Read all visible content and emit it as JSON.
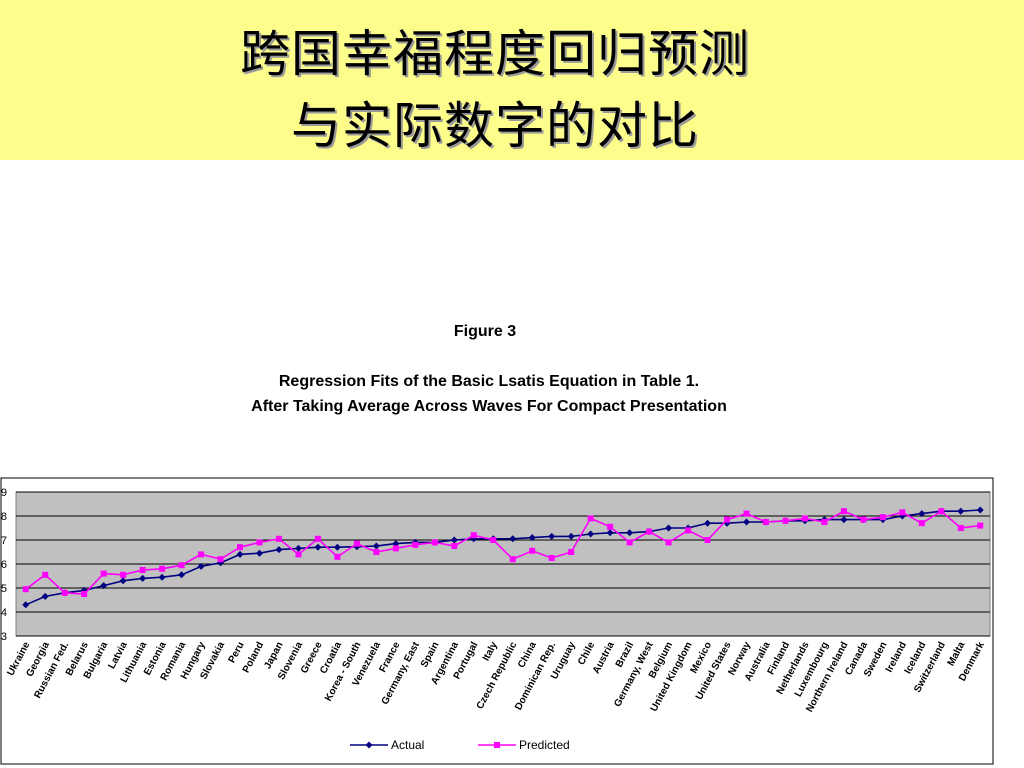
{
  "slide": {
    "title_line1": "跨国幸福程度回归预测",
    "title_line2": "与实际数字的对比"
  },
  "colors": {
    "banner": "#fdfd8c",
    "plot_bg": "#c0c0c0",
    "actual": "#000080",
    "predicted": "#ff00ff"
  },
  "chart_data": {
    "type": "line",
    "figure_label": "Figure 3",
    "title": "Regression Fits of the Basic Lsatis Equation in Table 1.",
    "subtitle": "After Taking Average Across Waves For Compact Presentation",
    "ylim": [
      3,
      9
    ],
    "yticks": [
      "3",
      "4",
      "5",
      "6",
      "7",
      "8",
      "9"
    ],
    "grid": true,
    "legend_position": "bottom",
    "categories": [
      "Ukraine",
      "Georgia",
      "Russian Fed.",
      "Belarus",
      "Bulgaria",
      "Latvia",
      "Lithuania",
      "Estonia",
      "Romania",
      "Hungary",
      "Slovakia",
      "Peru",
      "Poland",
      "Japan",
      "Slovenia",
      "Greece",
      "Croatia",
      "Korea - South",
      "Venezuela",
      "France",
      "Germany, East",
      "Spain",
      "Argentina",
      "Portugal",
      "Italy",
      "Czech Republic",
      "China",
      "Dominican Rep.",
      "Uruguay",
      "Chile",
      "Austria",
      "Brazil",
      "Germany, West",
      "Belgium",
      "United Kingdom",
      "Mexico",
      "United States",
      "Norway",
      "Australia",
      "Finland",
      "Netherlands",
      "Luxembourg",
      "Northern Ireland",
      "Canada",
      "Sweden",
      "Ireland",
      "Iceland",
      "Switzerland",
      "Malta",
      "Denmark"
    ],
    "series": [
      {
        "name": "Actual",
        "marker": "diamond",
        "values": [
          4.3,
          4.65,
          4.8,
          4.9,
          5.1,
          5.3,
          5.4,
          5.45,
          5.55,
          5.9,
          6.05,
          6.4,
          6.45,
          6.6,
          6.65,
          6.7,
          6.7,
          6.72,
          6.75,
          6.85,
          6.9,
          6.9,
          7.0,
          7.05,
          7.05,
          7.05,
          7.1,
          7.15,
          7.15,
          7.25,
          7.3,
          7.3,
          7.35,
          7.5,
          7.5,
          7.7,
          7.7,
          7.75,
          7.75,
          7.8,
          7.8,
          7.85,
          7.85,
          7.85,
          7.85,
          8.0,
          8.1,
          8.2,
          8.2,
          8.25
        ]
      },
      {
        "name": "Predicted",
        "marker": "square",
        "values": [
          4.95,
          5.55,
          4.8,
          4.75,
          5.6,
          5.55,
          5.75,
          5.8,
          5.95,
          6.4,
          6.2,
          6.7,
          6.9,
          7.05,
          6.4,
          7.05,
          6.3,
          6.85,
          6.5,
          6.65,
          6.8,
          6.9,
          6.75,
          7.2,
          7.0,
          6.2,
          6.55,
          6.25,
          6.5,
          7.9,
          7.55,
          6.9,
          7.35,
          6.9,
          7.4,
          7.0,
          7.85,
          8.1,
          7.75,
          7.8,
          7.9,
          7.75,
          8.2,
          7.85,
          7.95,
          8.15,
          7.7,
          8.2,
          7.5,
          7.6
        ]
      }
    ]
  }
}
